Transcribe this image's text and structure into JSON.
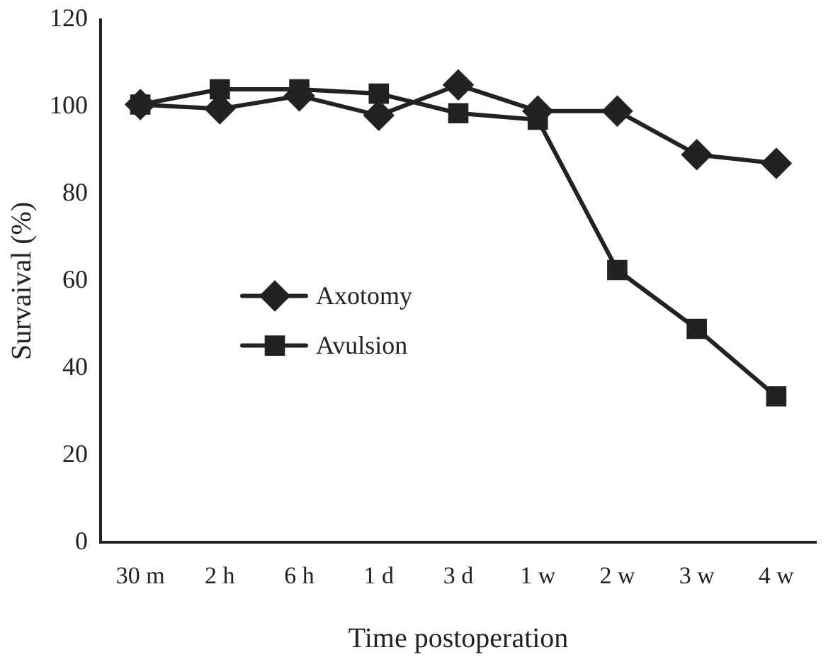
{
  "chart_data": {
    "type": "line",
    "xlabel": "Time postoperation",
    "ylabel": "Survaival (%)",
    "categories": [
      "30 m",
      "2 h",
      "6 h",
      "1 d",
      "3 d",
      "1 w",
      "2 w",
      "3 w",
      "4 w"
    ],
    "series": [
      {
        "name": "Axotomy",
        "color": "#222222",
        "marker": "diamond",
        "values": [
          100.5,
          99.5,
          102.5,
          98,
          105,
          99,
          99,
          89,
          87
        ]
      },
      {
        "name": "Avulsion",
        "color": "#222222",
        "marker": "square",
        "values": [
          100.5,
          104,
          104,
          103,
          98.5,
          97,
          62.5,
          49,
          33.5
        ]
      }
    ],
    "ylim": [
      0,
      120
    ],
    "yticks": [
      0,
      20,
      40,
      60,
      80,
      100,
      120
    ],
    "grid": false,
    "legend": "center",
    "line_style": "solid"
  }
}
